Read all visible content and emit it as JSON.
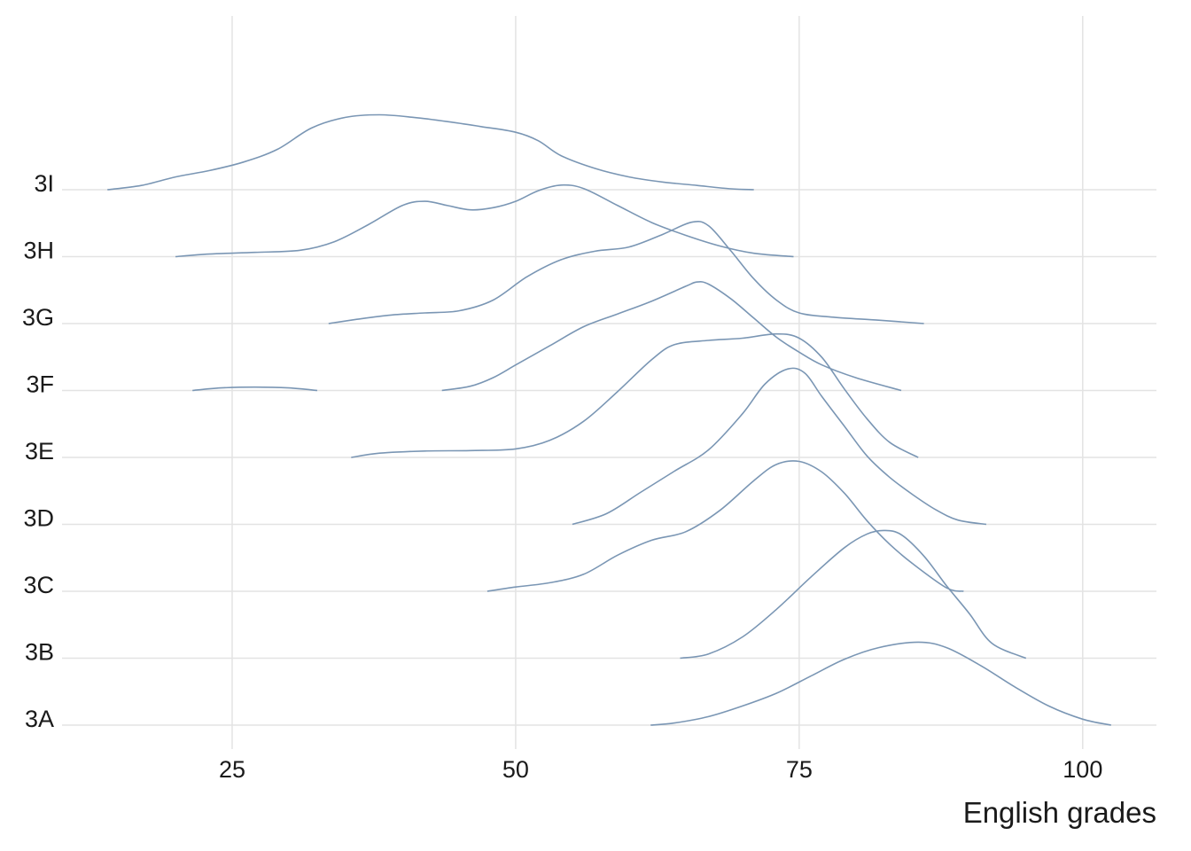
{
  "chart_data": {
    "type": "ridgeline",
    "title": "",
    "xlabel": "English grades",
    "ylabel": "",
    "xlim": [
      10,
      106.5
    ],
    "x_ticks": [
      25,
      50,
      75,
      100
    ],
    "x_tick_labels": [
      "25",
      "50",
      "75",
      "100"
    ],
    "categories": [
      "3A",
      "3B",
      "3C",
      "3D",
      "3E",
      "3F",
      "3G",
      "3H",
      "3I"
    ],
    "grid": true,
    "line_color": "#7a96b4",
    "grid_color": "#e3e3e3",
    "ridge_scale": 1.85,
    "series": [
      {
        "name": "3A",
        "points": [
          [
            61.9,
            0.0
          ],
          [
            64,
            0.05
          ],
          [
            67,
            0.2
          ],
          [
            70,
            0.45
          ],
          [
            73,
            0.75
          ],
          [
            76,
            1.15
          ],
          [
            79,
            1.55
          ],
          [
            82,
            1.82
          ],
          [
            85.5,
            1.95
          ],
          [
            88,
            1.82
          ],
          [
            91,
            1.4
          ],
          [
            94,
            0.9
          ],
          [
            97,
            0.45
          ],
          [
            100,
            0.14
          ],
          [
            102.5,
            0.0
          ]
        ]
      },
      {
        "name": "3B",
        "points": [
          [
            64.5,
            0.0
          ],
          [
            67,
            0.1
          ],
          [
            70,
            0.5
          ],
          [
            73,
            1.15
          ],
          [
            76,
            1.9
          ],
          [
            79,
            2.6
          ],
          [
            81,
            2.92
          ],
          [
            82.5,
            3.0
          ],
          [
            84,
            2.9
          ],
          [
            86,
            2.4
          ],
          [
            88,
            1.7
          ],
          [
            90,
            1.05
          ],
          [
            92,
            0.35
          ],
          [
            95,
            0.0
          ]
        ]
      },
      {
        "name": "3C",
        "points": [
          [
            47.5,
            0.0
          ],
          [
            50,
            0.1
          ],
          [
            53,
            0.2
          ],
          [
            56,
            0.4
          ],
          [
            59,
            0.85
          ],
          [
            62,
            1.2
          ],
          [
            65,
            1.4
          ],
          [
            68,
            1.9
          ],
          [
            71,
            2.6
          ],
          [
            73,
            2.98
          ],
          [
            75,
            3.05
          ],
          [
            77,
            2.8
          ],
          [
            79,
            2.3
          ],
          [
            81,
            1.65
          ],
          [
            83,
            1.1
          ],
          [
            85,
            0.65
          ],
          [
            88,
            0.08
          ],
          [
            89.5,
            0.0
          ]
        ]
      },
      {
        "name": "3D",
        "points": [
          [
            55,
            0.0
          ],
          [
            58,
            0.25
          ],
          [
            61,
            0.75
          ],
          [
            64,
            1.25
          ],
          [
            67,
            1.75
          ],
          [
            70,
            2.6
          ],
          [
            72,
            3.3
          ],
          [
            74,
            3.65
          ],
          [
            75.5,
            3.55
          ],
          [
            77,
            3.0
          ],
          [
            79,
            2.3
          ],
          [
            81,
            1.6
          ],
          [
            83,
            1.1
          ],
          [
            85,
            0.7
          ],
          [
            87,
            0.35
          ],
          [
            89,
            0.1
          ],
          [
            91.5,
            0.0
          ]
        ]
      },
      {
        "name": "3E",
        "points": [
          [
            35.5,
            0.0
          ],
          [
            38,
            0.1
          ],
          [
            42,
            0.15
          ],
          [
            46,
            0.16
          ],
          [
            50,
            0.2
          ],
          [
            53,
            0.4
          ],
          [
            56,
            0.85
          ],
          [
            59,
            1.55
          ],
          [
            62,
            2.3
          ],
          [
            64,
            2.65
          ],
          [
            67,
            2.75
          ],
          [
            70,
            2.8
          ],
          [
            73,
            2.9
          ],
          [
            75,
            2.8
          ],
          [
            77,
            2.35
          ],
          [
            79,
            1.6
          ],
          [
            81,
            0.9
          ],
          [
            83,
            0.35
          ],
          [
            85.5,
            0.0
          ]
        ]
      },
      {
        "name": "3F",
        "points": [
          [
            21.5,
            0.0
          ],
          [
            24,
            0.06
          ],
          [
            27,
            0.08
          ],
          [
            30,
            0.06
          ],
          [
            32.5,
            0.0
          ]
        ]
      },
      {
        "name": "3F",
        "points": [
          [
            43.5,
            0.0
          ],
          [
            46,
            0.1
          ],
          [
            48,
            0.3
          ],
          [
            50,
            0.6
          ],
          [
            53,
            1.05
          ],
          [
            56,
            1.5
          ],
          [
            59,
            1.8
          ],
          [
            62,
            2.1
          ],
          [
            65,
            2.45
          ],
          [
            66,
            2.55
          ],
          [
            67,
            2.5
          ],
          [
            69,
            2.15
          ],
          [
            71,
            1.7
          ],
          [
            73,
            1.25
          ],
          [
            75,
            0.9
          ],
          [
            77,
            0.6
          ],
          [
            80,
            0.3
          ],
          [
            84,
            0.0
          ]
        ]
      },
      {
        "name": "3G",
        "points": [
          [
            33.5,
            0.0
          ],
          [
            36,
            0.1
          ],
          [
            39,
            0.2
          ],
          [
            42,
            0.25
          ],
          [
            45,
            0.3
          ],
          [
            48,
            0.55
          ],
          [
            51,
            1.1
          ],
          [
            54,
            1.5
          ],
          [
            57,
            1.7
          ],
          [
            60,
            1.8
          ],
          [
            63,
            2.1
          ],
          [
            65.5,
            2.38
          ],
          [
            67,
            2.3
          ],
          [
            69,
            1.7
          ],
          [
            71,
            1.05
          ],
          [
            73,
            0.55
          ],
          [
            75,
            0.25
          ],
          [
            78,
            0.15
          ],
          [
            82,
            0.08
          ],
          [
            86,
            0.0
          ]
        ]
      },
      {
        "name": "3H",
        "points": [
          [
            20,
            0.0
          ],
          [
            23,
            0.06
          ],
          [
            27,
            0.1
          ],
          [
            31,
            0.15
          ],
          [
            34,
            0.35
          ],
          [
            37,
            0.75
          ],
          [
            40,
            1.2
          ],
          [
            42,
            1.3
          ],
          [
            44,
            1.2
          ],
          [
            46,
            1.1
          ],
          [
            48,
            1.15
          ],
          [
            50,
            1.3
          ],
          [
            52,
            1.55
          ],
          [
            54,
            1.68
          ],
          [
            56,
            1.6
          ],
          [
            59,
            1.2
          ],
          [
            62,
            0.8
          ],
          [
            65,
            0.5
          ],
          [
            68,
            0.25
          ],
          [
            71,
            0.08
          ],
          [
            74.5,
            0.0
          ]
        ]
      },
      {
        "name": "3I",
        "points": [
          [
            14,
            0.0
          ],
          [
            17,
            0.1
          ],
          [
            20,
            0.3
          ],
          [
            23,
            0.45
          ],
          [
            26,
            0.65
          ],
          [
            29,
            0.95
          ],
          [
            32,
            1.45
          ],
          [
            35,
            1.7
          ],
          [
            38,
            1.76
          ],
          [
            41,
            1.7
          ],
          [
            44,
            1.6
          ],
          [
            47,
            1.48
          ],
          [
            50,
            1.35
          ],
          [
            52,
            1.15
          ],
          [
            54,
            0.8
          ],
          [
            57,
            0.5
          ],
          [
            60,
            0.3
          ],
          [
            63,
            0.18
          ],
          [
            66,
            0.1
          ],
          [
            69,
            0.02
          ],
          [
            71,
            0.0
          ]
        ]
      }
    ]
  }
}
